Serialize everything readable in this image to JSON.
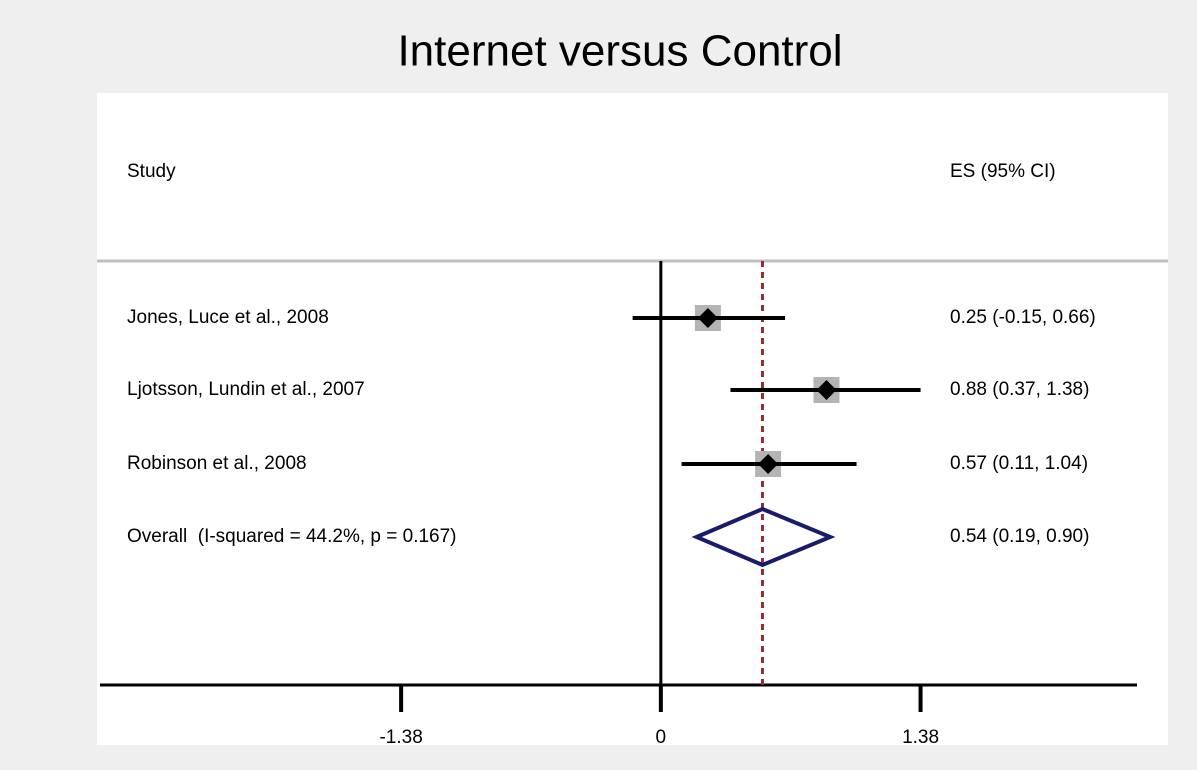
{
  "chart_data": {
    "type": "forest",
    "title": "Internet versus Control",
    "study_header": "Study",
    "es_header": "ES (95% CI)",
    "categories": [
      "Jones, Luce et al., 2008",
      "Ljotsson, Lundin et al., 2007",
      "Robinson et al., 2008"
    ],
    "values": [
      0.25,
      0.88,
      0.57
    ],
    "lower": [
      -0.15,
      0.37,
      0.11
    ],
    "upper": [
      0.66,
      1.38,
      1.04
    ],
    "value_labels": [
      "0.25 (-0.15, 0.66)",
      "0.88 (0.37, 1.38)",
      "0.57 (0.11, 1.04)"
    ],
    "overall": {
      "name": "Overall  (I-squared = 44.2%, p = 0.167)",
      "value": 0.54,
      "lower": 0.19,
      "upper": 0.9,
      "value_label": "0.54 (0.19, 0.90)"
    },
    "xlim": [
      -2.98,
      2.53
    ],
    "xticks": [
      -1.38,
      0,
      1.38
    ],
    "box_color": "#b4b4b4",
    "diamond_color": "#1b1b6b",
    "overall_line_color": "#8e2f3a"
  }
}
